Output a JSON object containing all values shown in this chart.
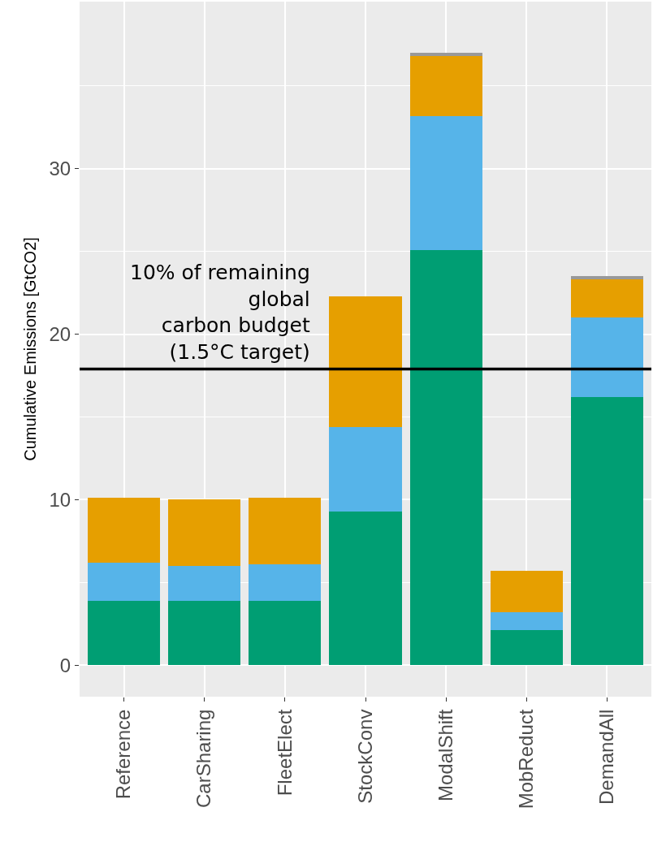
{
  "chart_data": {
    "type": "bar",
    "stacked": true,
    "ylabel": "Cumulative Emissions [GtCO2]",
    "categories": [
      "Reference",
      "CarSharing",
      "FleetElect",
      "StockConv",
      "ModalShift",
      "MobReduct",
      "DemandAll"
    ],
    "series": [
      {
        "color": "#009e73",
        "values": [
          3.9,
          3.9,
          3.9,
          9.3,
          25.1,
          2.1,
          16.2
        ]
      },
      {
        "color": "#56b4e9",
        "values": [
          2.3,
          2.1,
          2.2,
          5.1,
          8.1,
          1.1,
          4.8
        ]
      },
      {
        "color": "#e69f00",
        "values": [
          3.9,
          4.0,
          4.0,
          7.9,
          3.6,
          2.5,
          2.3
        ]
      },
      {
        "color": "#999999",
        "values": [
          null,
          null,
          null,
          null,
          0.2,
          null,
          0.2
        ]
      }
    ],
    "ylim": [
      -1.9,
      40.1
    ],
    "yticks": [
      0,
      10,
      20,
      30
    ],
    "grid": true,
    "ref_lines": [
      {
        "axis": "y",
        "value": 17.9,
        "label": "10% of remaining\nglobal\ncarbon budget\n(1.5°C target)",
        "color": "#000000",
        "line_style": "solid"
      }
    ]
  }
}
